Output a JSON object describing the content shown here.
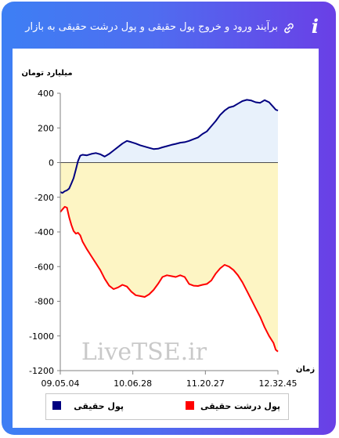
{
  "header": {
    "title": "برآیند ورود و خروج پول حقیقی و پول درشت حقیقی به بازار",
    "info_icon": "info-icon",
    "link_icon": "link-icon"
  },
  "colors": {
    "frame_gradient": [
      "#3d7ff4",
      "#6a3fe6"
    ],
    "series_real_money": "#000080",
    "series_big_money": "#ff0000",
    "fill_positive": "#e8f1fb",
    "fill_negative": "#fdf5c4"
  },
  "chart_data": {
    "type": "line",
    "ylabel": "میلیارد تومان",
    "xlabel": "زمان",
    "ylim": [
      -1200,
      400
    ],
    "y_ticks": [
      400,
      200,
      0,
      -200,
      -400,
      -600,
      -800,
      -1000,
      -1200
    ],
    "x_ticks": [
      "09.05.04",
      "10.06.28",
      "11.20.27",
      "12.32.45"
    ],
    "watermark": "LiveTSE.ir",
    "legend": {
      "placement": "bottom"
    },
    "series": [
      {
        "name": "پول حقیقی",
        "color": "#000080",
        "points": [
          [
            0,
            -170
          ],
          [
            0.5,
            -175
          ],
          [
            1,
            -165
          ],
          [
            1.5,
            -160
          ],
          [
            2,
            -150
          ],
          [
            2.5,
            -120
          ],
          [
            3,
            -90
          ],
          [
            3.5,
            -40
          ],
          [
            4,
            10
          ],
          [
            4.5,
            40
          ],
          [
            5,
            45
          ],
          [
            6,
            42
          ],
          [
            7,
            50
          ],
          [
            8,
            55
          ],
          [
            9,
            48
          ],
          [
            10,
            35
          ],
          [
            11,
            50
          ],
          [
            12,
            70
          ],
          [
            13,
            90
          ],
          [
            14,
            110
          ],
          [
            15,
            125
          ],
          [
            16,
            118
          ],
          [
            17,
            110
          ],
          [
            18,
            100
          ],
          [
            19,
            92
          ],
          [
            20,
            85
          ],
          [
            21,
            78
          ],
          [
            22,
            80
          ],
          [
            23,
            88
          ],
          [
            24,
            95
          ],
          [
            25,
            102
          ],
          [
            26,
            108
          ],
          [
            27,
            115
          ],
          [
            28,
            118
          ],
          [
            29,
            125
          ],
          [
            30,
            135
          ],
          [
            31,
            145
          ],
          [
            32,
            165
          ],
          [
            33,
            180
          ],
          [
            34,
            210
          ],
          [
            35,
            240
          ],
          [
            36,
            275
          ],
          [
            37,
            300
          ],
          [
            38,
            318
          ],
          [
            39,
            325
          ],
          [
            40,
            340
          ],
          [
            41,
            355
          ],
          [
            42,
            362
          ],
          [
            43,
            358
          ],
          [
            44,
            348
          ],
          [
            45,
            345
          ],
          [
            46,
            360
          ],
          [
            47,
            348
          ],
          [
            48,
            320
          ],
          [
            48.5,
            305
          ],
          [
            49,
            300
          ]
        ]
      },
      {
        "name": "پول درشت حقیقی",
        "color": "#ff0000",
        "points": [
          [
            0,
            -285
          ],
          [
            0.5,
            -270
          ],
          [
            1,
            -255
          ],
          [
            1.5,
            -260
          ],
          [
            2,
            -315
          ],
          [
            2.5,
            -360
          ],
          [
            3,
            -395
          ],
          [
            3.5,
            -410
          ],
          [
            4,
            -405
          ],
          [
            4.5,
            -420
          ],
          [
            5,
            -455
          ],
          [
            6,
            -500
          ],
          [
            7,
            -540
          ],
          [
            8,
            -580
          ],
          [
            9,
            -620
          ],
          [
            10,
            -670
          ],
          [
            11,
            -710
          ],
          [
            12,
            -730
          ],
          [
            13,
            -720
          ],
          [
            14,
            -705
          ],
          [
            15,
            -715
          ],
          [
            16,
            -745
          ],
          [
            17,
            -765
          ],
          [
            18,
            -770
          ],
          [
            19,
            -775
          ],
          [
            20,
            -760
          ],
          [
            21,
            -735
          ],
          [
            22,
            -700
          ],
          [
            23,
            -660
          ],
          [
            24,
            -650
          ],
          [
            25,
            -655
          ],
          [
            26,
            -660
          ],
          [
            27,
            -650
          ],
          [
            28,
            -660
          ],
          [
            29,
            -700
          ],
          [
            30,
            -710
          ],
          [
            31,
            -712
          ],
          [
            32,
            -705
          ],
          [
            33,
            -700
          ],
          [
            34,
            -680
          ],
          [
            35,
            -640
          ],
          [
            36,
            -610
          ],
          [
            37,
            -590
          ],
          [
            38,
            -600
          ],
          [
            39,
            -620
          ],
          [
            40,
            -650
          ],
          [
            41,
            -690
          ],
          [
            42,
            -740
          ],
          [
            43,
            -790
          ],
          [
            44,
            -840
          ],
          [
            45,
            -890
          ],
          [
            46,
            -950
          ],
          [
            47,
            -1000
          ],
          [
            48,
            -1040
          ],
          [
            48.5,
            -1080
          ],
          [
            49,
            -1090
          ]
        ]
      }
    ]
  }
}
